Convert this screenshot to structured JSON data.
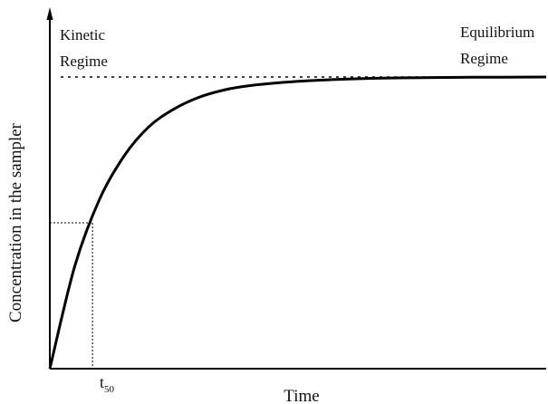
{
  "chart_data": {
    "type": "line",
    "title": "",
    "xlabel": "Time",
    "ylabel": "Concentration in the sampler",
    "xlim": [
      0,
      1
    ],
    "ylim": [
      0,
      1
    ],
    "grid": false,
    "legend": "none",
    "series": [
      {
        "values": [
          {
            "x": 0.0,
            "y": 0.0
          },
          {
            "x": 0.05,
            "y": 0.35
          },
          {
            "x": 0.1,
            "y": 0.58
          },
          {
            "x": 0.15,
            "y": 0.73
          },
          {
            "x": 0.2,
            "y": 0.83
          },
          {
            "x": 0.25,
            "y": 0.89
          },
          {
            "x": 0.3,
            "y": 0.93
          },
          {
            "x": 0.35,
            "y": 0.955
          },
          {
            "x": 0.4,
            "y": 0.97
          },
          {
            "x": 0.5,
            "y": 0.985
          },
          {
            "x": 0.6,
            "y": 0.993
          },
          {
            "x": 0.7,
            "y": 0.997
          },
          {
            "x": 0.85,
            "y": 0.999
          },
          {
            "x": 1.0,
            "y": 1.0
          }
        ]
      }
    ],
    "annotations": {
      "kinetic": [
        "Kinetic",
        "Regime"
      ],
      "equilibrium": [
        "Equilibrium",
        "Regime"
      ],
      "t50_base": "t",
      "t50_sub": "50"
    },
    "t50": {
      "x": 0.086,
      "y": 0.5
    },
    "equilibrium_level": 1.0,
    "colors": {
      "line": "#000000",
      "text": "#111111"
    }
  }
}
